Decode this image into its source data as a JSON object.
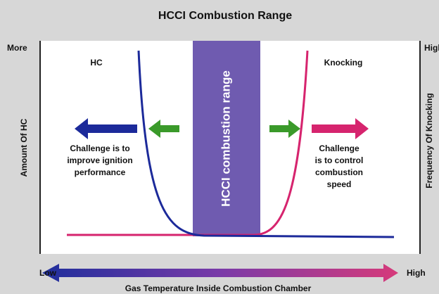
{
  "title": "HCCI Combustion Range",
  "left_axis": {
    "top": "More",
    "label": "Amount Of HC"
  },
  "right_axis": {
    "top": "High",
    "label": "Frequency Of Knocking"
  },
  "band": {
    "label": "HCCI combustion range"
  },
  "left_region": {
    "title": "HC",
    "note": [
      "Challenge is to",
      "improve ignition",
      "performance"
    ]
  },
  "right_region": {
    "title": "Knocking",
    "note": [
      "Challenge",
      "is to control",
      "combustion",
      "speed"
    ]
  },
  "bottom_axis": {
    "low": "Low",
    "high": "High",
    "label": "Gas Temperature Inside Combustion Chamber"
  }
}
